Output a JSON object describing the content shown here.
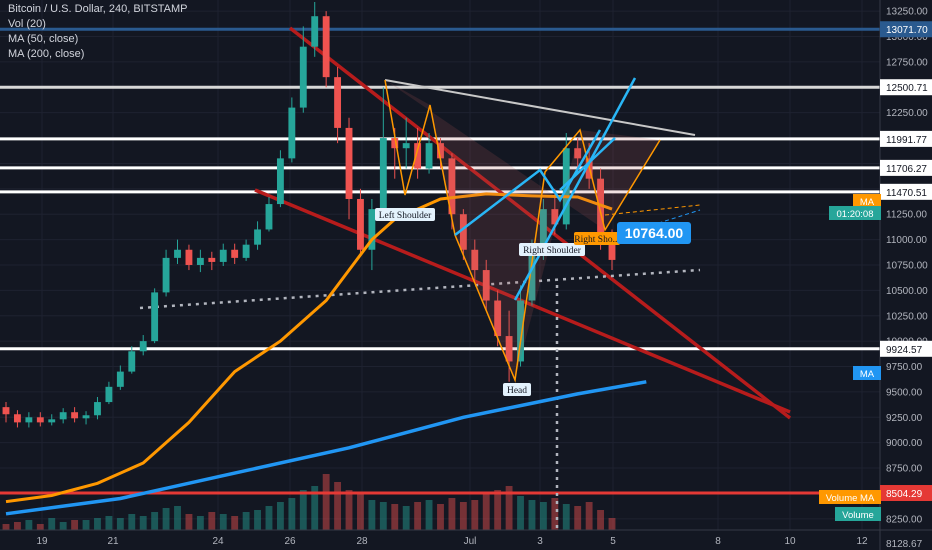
{
  "chart_data": {
    "type": "candlestick",
    "title": "Bitcoin / U.S. Dollar, 240, BITSTAMP",
    "indicators": [
      "Vol (20)",
      "MA (50, close)",
      "MA (200, close)"
    ],
    "y_axis": {
      "ticks": [
        13250,
        13000,
        12750,
        12500,
        12250,
        12000,
        11750,
        11500,
        11250,
        11000,
        10750,
        10500,
        10250,
        10000,
        9750,
        9500,
        9250,
        9000,
        8750,
        8500,
        8250
      ],
      "tick_labels": [
        "13250.00",
        "13000.00",
        "12750.00",
        "12500.00",
        "12250.00",
        "12000.00",
        "11750.00",
        "11500.00",
        "11250.00",
        "11000.00",
        "10750.00",
        "10500.00",
        "10250.00",
        "10000.00",
        "9750.00",
        "9500.00",
        "9250.00",
        "9000.00",
        "8750.00",
        "8500.00",
        "8250.00"
      ],
      "ylim": [
        8140,
        13340
      ],
      "bottom_label": "8128.67"
    },
    "x_axis": {
      "ticks": [
        19,
        21,
        24,
        26,
        28,
        "Jul",
        3,
        5,
        8,
        10,
        12
      ],
      "tick_labels": [
        "19",
        "21",
        "24",
        "26",
        "28",
        "Jul",
        "3",
        "5",
        "8",
        "10",
        "12"
      ]
    },
    "horizontal_levels": [
      {
        "value": 13071.7,
        "label": "13071.70",
        "color": "#2a5a8f"
      },
      {
        "value": 12500.71,
        "label": "12500.71",
        "color": "#d8d8d8"
      },
      {
        "value": 11991.77,
        "label": "11991.77",
        "color": "#ffffff"
      },
      {
        "value": 11706.27,
        "label": "11706.27",
        "color": "#ffffff"
      },
      {
        "value": 11470.51,
        "label": "11470.51",
        "color": "#ffffff"
      },
      {
        "value": 9924.57,
        "label": "9924.57",
        "color": "#ffffff"
      },
      {
        "value": 8504.29,
        "label": "8504.29",
        "color": "#e53935"
      }
    ],
    "price_tags": [
      {
        "label": "MA",
        "color": "#ff9800"
      },
      {
        "label": "01:20:08",
        "color": "#26a69a"
      },
      {
        "label": "MA",
        "color": "#2196f3"
      },
      {
        "label": "Volume MA",
        "color": "#ff9800"
      },
      {
        "label": "Volume",
        "color": "#26a69a"
      }
    ],
    "current_price_label": "10764.00",
    "pattern_labels": [
      "Left Shoulder",
      "Head",
      "Right Shoulder",
      "Right Sho..."
    ],
    "candles": [
      [
        9350,
        9280,
        9400,
        9200
      ],
      [
        9280,
        9200,
        9320,
        9150
      ],
      [
        9200,
        9250,
        9300,
        9150
      ],
      [
        9250,
        9200,
        9300,
        9160
      ],
      [
        9200,
        9230,
        9280,
        9170
      ],
      [
        9230,
        9300,
        9340,
        9190
      ],
      [
        9300,
        9240,
        9350,
        9200
      ],
      [
        9240,
        9270,
        9310,
        9180
      ],
      [
        9270,
        9400,
        9450,
        9230
      ],
      [
        9400,
        9550,
        9600,
        9380
      ],
      [
        9550,
        9700,
        9760,
        9520
      ],
      [
        9700,
        9900,
        9950,
        9680
      ],
      [
        9900,
        10000,
        10060,
        9860
      ],
      [
        10000,
        10480,
        10520,
        9980
      ],
      [
        10480,
        10820,
        10900,
        10440
      ],
      [
        10820,
        10900,
        11000,
        10760
      ],
      [
        10900,
        10750,
        10950,
        10700
      ],
      [
        10750,
        10820,
        10900,
        10680
      ],
      [
        10820,
        10780,
        10880,
        10700
      ],
      [
        10780,
        10900,
        10960,
        10740
      ],
      [
        10900,
        10820,
        10960,
        10760
      ],
      [
        10820,
        10950,
        11000,
        10790
      ],
      [
        10950,
        11100,
        11180,
        10900
      ],
      [
        11100,
        11350,
        11420,
        11080
      ],
      [
        11350,
        11800,
        11880,
        11320
      ],
      [
        11800,
        12300,
        12400,
        11760
      ],
      [
        12300,
        12900,
        13100,
        12250
      ],
      [
        12900,
        13200,
        13340,
        12800
      ],
      [
        13200,
        12600,
        13250,
        12500
      ],
      [
        12600,
        12100,
        12700,
        11950
      ],
      [
        12100,
        11400,
        12200,
        11200
      ],
      [
        11400,
        10900,
        11500,
        10850
      ],
      [
        10900,
        11300,
        11400,
        10700
      ],
      [
        11300,
        12000,
        12500,
        11250
      ],
      [
        12000,
        11900,
        12100,
        11600
      ],
      [
        11900,
        11950,
        12200,
        11700
      ],
      [
        11950,
        11700,
        12100,
        11600
      ],
      [
        11700,
        11950,
        12050,
        11650
      ],
      [
        11950,
        11800,
        12000,
        11700
      ],
      [
        11800,
        11250,
        11850,
        11100
      ],
      [
        11250,
        10900,
        11300,
        10800
      ],
      [
        10900,
        10700,
        11000,
        10600
      ],
      [
        10700,
        10400,
        10800,
        10300
      ],
      [
        10400,
        10050,
        10500,
        9950
      ],
      [
        10050,
        9800,
        10300,
        9600
      ],
      [
        9800,
        10400,
        10550,
        9750
      ],
      [
        10400,
        10900,
        11000,
        10350
      ],
      [
        10900,
        11300,
        11400,
        10800
      ],
      [
        11300,
        11150,
        11500,
        11050
      ],
      [
        11150,
        11900,
        12050,
        11100
      ],
      [
        11900,
        11800,
        12000,
        11650
      ],
      [
        11800,
        11600,
        11950,
        11500
      ],
      [
        11600,
        11000,
        11700,
        10900
      ],
      [
        11000,
        10800,
        11100,
        10700
      ]
    ],
    "ma50": [
      [
        0,
        8420
      ],
      [
        4,
        8480
      ],
      [
        8,
        8600
      ],
      [
        12,
        8800
      ],
      [
        16,
        9200
      ],
      [
        20,
        9700
      ],
      [
        24,
        10000
      ],
      [
        28,
        10400
      ],
      [
        30,
        10700
      ],
      [
        32,
        11000
      ],
      [
        34,
        11200
      ],
      [
        38,
        11400
      ],
      [
        42,
        11450
      ],
      [
        46,
        11430
      ],
      [
        50,
        11420
      ],
      [
        53,
        11300
      ]
    ],
    "ma200": [
      [
        0,
        8300
      ],
      [
        10,
        8450
      ],
      [
        20,
        8700
      ],
      [
        30,
        8950
      ],
      [
        40,
        9250
      ],
      [
        50,
        9480
      ],
      [
        56,
        9600
      ]
    ],
    "volume": [
      3,
      4,
      5,
      3,
      6,
      4,
      5,
      5,
      6,
      7,
      6,
      8,
      7,
      9,
      11,
      12,
      8,
      7,
      9,
      8,
      7,
      9,
      10,
      12,
      14,
      16,
      20,
      22,
      28,
      24,
      20,
      18,
      15,
      14,
      13,
      12,
      14,
      15,
      13,
      16,
      14,
      15,
      18,
      20,
      22,
      17,
      15,
      14,
      16,
      13,
      12,
      14,
      10,
      6
    ]
  }
}
